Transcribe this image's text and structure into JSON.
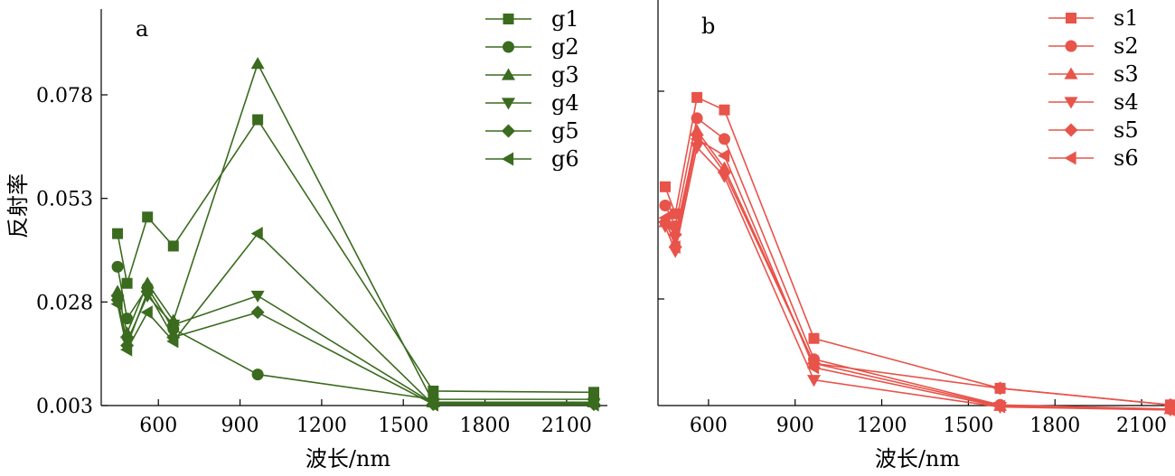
{
  "chart_data": [
    {
      "type": "line",
      "panel_label": "a",
      "xlabel": "波长/nm",
      "ylabel": "反射率",
      "xlim": [
        400,
        2250
      ],
      "ylim": [
        0.003,
        0.1
      ],
      "xticks": [
        600,
        900,
        1200,
        1500,
        1800,
        2100
      ],
      "xtick_labels": [
        "600",
        "900",
        "1200",
        "1500",
        "1800",
        "2100"
      ],
      "yticks": [
        0.003,
        0.028,
        0.053,
        0.078
      ],
      "ytick_labels": [
        "0.003",
        "0.028",
        "0.053",
        "0.078"
      ],
      "color": "#3a6b1e",
      "legend_position": "top-right",
      "x": [
        450,
        485,
        560,
        655,
        965,
        1610,
        2200
      ],
      "series": [
        {
          "name": "g1",
          "marker": "square",
          "values": [
            0.0445,
            0.0325,
            0.0485,
            0.0415,
            0.072,
            0.0065,
            0.0062
          ]
        },
        {
          "name": "g2",
          "marker": "circle",
          "values": [
            0.0365,
            0.024,
            0.0315,
            0.0215,
            0.0105,
            0.0045,
            0.0045
          ]
        },
        {
          "name": "g3",
          "marker": "triangle-up",
          "values": [
            0.0305,
            0.0205,
            0.0325,
            0.0235,
            0.0855,
            0.0038,
            0.0038
          ]
        },
        {
          "name": "g4",
          "marker": "triangle-down",
          "values": [
            0.0285,
            0.0185,
            0.0295,
            0.0225,
            0.0295,
            0.0035,
            0.0035
          ]
        },
        {
          "name": "g5",
          "marker": "diamond",
          "values": [
            0.0285,
            0.0175,
            0.0305,
            0.0195,
            0.0255,
            0.0033,
            0.0033
          ]
        },
        {
          "name": "g6",
          "marker": "triangle-left",
          "values": [
            0.0275,
            0.0165,
            0.0255,
            0.0185,
            0.0445,
            0.0032,
            0.0032
          ]
        }
      ]
    },
    {
      "type": "line",
      "panel_label": "b",
      "xlabel": "波长/nm",
      "ylabel": "",
      "xlim": [
        400,
        2250
      ],
      "ylim": [
        0.0,
        0.1
      ],
      "xticks": [
        600,
        900,
        1200,
        1500,
        1800,
        2100
      ],
      "xtick_labels": [
        "600",
        "900",
        "1200",
        "1500",
        "1800",
        "2100"
      ],
      "yticks": [
        0.028,
        0.078
      ],
      "ytick_labels": [
        "",
        ""
      ],
      "color": "#e8534a",
      "legend_position": "top-right",
      "x": [
        450,
        485,
        560,
        655,
        965,
        1610,
        2200
      ],
      "series": [
        {
          "name": "s1",
          "marker": "square",
          "values": [
            0.055,
            0.0485,
            0.0765,
            0.0735,
            0.0185,
            0.0065,
            0.0025
          ]
        },
        {
          "name": "s2",
          "marker": "circle",
          "values": [
            0.0505,
            0.0455,
            0.0715,
            0.0665,
            0.0135,
            0.0025,
            0.0015
          ]
        },
        {
          "name": "s3",
          "marker": "triangle-up",
          "values": [
            0.0465,
            0.0415,
            0.0685,
            0.0595,
            0.0125,
            0.0023,
            0.0015
          ]
        },
        {
          "name": "s4",
          "marker": "triangle-down",
          "values": [
            0.0455,
            0.0395,
            0.0645,
            0.0575,
            0.0085,
            0.002,
            0.0013
          ]
        },
        {
          "name": "s5",
          "marker": "diamond",
          "values": [
            0.0465,
            0.0435,
            0.0675,
            0.0585,
            0.0125,
            0.0065,
            0.0025
          ]
        },
        {
          "name": "s6",
          "marker": "triangle-left",
          "values": [
            0.0475,
            0.0405,
            0.0665,
            0.0625,
            0.0115,
            0.0021,
            0.0013
          ]
        }
      ]
    }
  ]
}
